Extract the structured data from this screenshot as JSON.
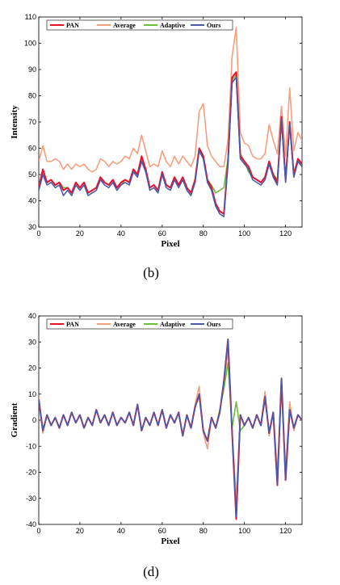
{
  "captions": [
    "(b)",
    "(d)"
  ],
  "chart_data": [
    {
      "type": "line",
      "id": "b",
      "xlabel": "Pixel",
      "ylabel": "Intensity",
      "xlim": [
        0,
        128
      ],
      "ylim": [
        30,
        110
      ],
      "xticks": [
        0,
        20,
        40,
        60,
        80,
        100,
        120
      ],
      "yticks": [
        30,
        40,
        50,
        60,
        70,
        80,
        90,
        100,
        110
      ],
      "legend_position": "top-left",
      "x": [
        0,
        2,
        4,
        6,
        8,
        10,
        12,
        14,
        16,
        18,
        20,
        22,
        24,
        26,
        28,
        30,
        32,
        34,
        36,
        38,
        40,
        42,
        44,
        46,
        48,
        50,
        52,
        54,
        56,
        58,
        60,
        62,
        64,
        66,
        68,
        70,
        72,
        74,
        76,
        78,
        80,
        82,
        84,
        86,
        88,
        90,
        92,
        94,
        96,
        98,
        100,
        102,
        104,
        106,
        108,
        110,
        112,
        114,
        116,
        118,
        120,
        122,
        124,
        126,
        128
      ],
      "series": [
        {
          "name": "PAN",
          "color": "#e8112d",
          "values": [
            45,
            52,
            47,
            48,
            46,
            47,
            44,
            45,
            43,
            47,
            45,
            47,
            43,
            44,
            45,
            49,
            47,
            46,
            48,
            45,
            47,
            48,
            47,
            52,
            50,
            57,
            52,
            45,
            46,
            44,
            51,
            46,
            45,
            49,
            46,
            49,
            45,
            43,
            48,
            60,
            57,
            48,
            45,
            39,
            36,
            35,
            55,
            87,
            89,
            57,
            55,
            53,
            49,
            48,
            47,
            49,
            55,
            50,
            47,
            72,
            48,
            70,
            50,
            56,
            54
          ]
        },
        {
          "name": "Average",
          "color": "#f4a07e",
          "values": [
            55,
            61,
            55,
            55,
            56,
            55,
            52,
            54,
            52,
            54,
            53,
            54,
            52,
            51,
            52,
            56,
            55,
            53,
            55,
            54,
            55,
            57,
            56,
            60,
            58,
            65,
            59,
            53,
            54,
            53,
            59,
            55,
            53,
            57,
            54,
            57,
            55,
            53,
            57,
            74,
            77,
            61,
            57,
            55,
            53,
            53,
            63,
            95,
            106,
            66,
            62,
            61,
            57,
            56,
            56,
            58,
            69,
            63,
            58,
            76,
            57,
            83,
            59,
            66,
            63
          ]
        },
        {
          "name": "Adaptive",
          "color": "#6cbf3b",
          "values": [
            46,
            51,
            47,
            48,
            46,
            47,
            45,
            45,
            43,
            47,
            45,
            47,
            43,
            44,
            45,
            48,
            47,
            46,
            48,
            45,
            46,
            48,
            47,
            51,
            50,
            56,
            52,
            45,
            46,
            44,
            50,
            46,
            45,
            49,
            46,
            49,
            45,
            43,
            48,
            60,
            56,
            48,
            46,
            43,
            44,
            45,
            56,
            86,
            88,
            58,
            55,
            51,
            49,
            48,
            47,
            49,
            55,
            50,
            48,
            71,
            48,
            69,
            50,
            55,
            54
          ]
        },
        {
          "name": "Ours",
          "color": "#4a5aa8",
          "values": [
            44,
            50,
            46,
            47,
            45,
            46,
            42,
            44,
            42,
            46,
            44,
            46,
            42,
            43,
            44,
            48,
            46,
            45,
            47,
            44,
            46,
            47,
            46,
            51,
            49,
            55,
            51,
            44,
            45,
            43,
            50,
            45,
            44,
            48,
            45,
            48,
            44,
            42,
            47,
            59,
            56,
            47,
            44,
            38,
            35,
            34,
            54,
            85,
            87,
            56,
            54,
            52,
            48,
            47,
            46,
            48,
            54,
            49,
            46,
            71,
            47,
            69,
            49,
            55,
            53
          ]
        }
      ]
    },
    {
      "type": "line",
      "id": "d",
      "xlabel": "Pixel",
      "ylabel": "Gradient",
      "xlim": [
        0,
        128
      ],
      "ylim": [
        -40,
        40
      ],
      "xticks": [
        0,
        20,
        40,
        60,
        80,
        100,
        120
      ],
      "yticks": [
        -40,
        -30,
        -20,
        -10,
        0,
        10,
        20,
        30,
        40
      ],
      "legend_position": "top",
      "x": [
        0,
        2,
        4,
        6,
        8,
        10,
        12,
        14,
        16,
        18,
        20,
        22,
        24,
        26,
        28,
        30,
        32,
        34,
        36,
        38,
        40,
        42,
        44,
        46,
        48,
        50,
        52,
        54,
        56,
        58,
        60,
        62,
        64,
        66,
        68,
        70,
        72,
        74,
        76,
        78,
        80,
        82,
        84,
        86,
        88,
        90,
        92,
        94,
        96,
        98,
        100,
        102,
        104,
        106,
        108,
        110,
        112,
        114,
        116,
        118,
        120,
        122,
        124,
        126,
        128
      ],
      "series": [
        {
          "name": "PAN",
          "color": "#e8112d",
          "values": [
            8,
            -4,
            2,
            -2,
            1,
            -3,
            2,
            -2,
            3,
            -1,
            2,
            -3,
            1,
            -2,
            4,
            -1,
            2,
            -2,
            3,
            -2,
            1,
            -1,
            3,
            -2,
            6,
            -4,
            1,
            -2,
            3,
            -2,
            4,
            -3,
            2,
            -1,
            3,
            -6,
            2,
            -3,
            5,
            10,
            -4,
            -8,
            1,
            -3,
            3,
            15,
            31,
            -5,
            -38,
            2,
            -2,
            1,
            -3,
            2,
            -2,
            9,
            -5,
            3,
            -25,
            16,
            -23,
            4,
            -3,
            2,
            0
          ]
        },
        {
          "name": "Average",
          "color": "#f4a07e",
          "values": [
            9,
            -5,
            2,
            -2,
            1,
            -3,
            2,
            -2,
            3,
            -1,
            2,
            -3,
            1,
            -2,
            4,
            -1,
            2,
            -2,
            3,
            -2,
            1,
            -1,
            3,
            -2,
            6,
            -4,
            1,
            -2,
            3,
            -2,
            4,
            -3,
            2,
            -1,
            3,
            -6,
            2,
            -3,
            6,
            13,
            -5,
            -11,
            1,
            -3,
            3,
            14,
            27,
            -4,
            -30,
            2,
            -2,
            1,
            -3,
            2,
            -2,
            11,
            -6,
            3,
            -20,
            13,
            -19,
            7,
            -4,
            2,
            0
          ]
        },
        {
          "name": "Adaptive",
          "color": "#6cbf3b",
          "values": [
            7,
            -4,
            2,
            -2,
            1,
            -3,
            2,
            -2,
            3,
            -1,
            2,
            -3,
            1,
            -2,
            4,
            -1,
            2,
            -2,
            3,
            -2,
            1,
            -1,
            3,
            -2,
            6,
            -4,
            1,
            -2,
            3,
            -2,
            4,
            -3,
            2,
            -1,
            3,
            -6,
            2,
            -3,
            5,
            9,
            -4,
            -8,
            1,
            -3,
            4,
            12,
            22,
            -3,
            7,
            -4,
            -2,
            1,
            -3,
            2,
            -2,
            8,
            -5,
            3,
            -24,
            15,
            -22,
            4,
            -3,
            2,
            0
          ]
        },
        {
          "name": "Ours",
          "color": "#4a5aa8",
          "values": [
            8,
            -4,
            2,
            -2,
            1,
            -3,
            2,
            -2,
            3,
            -1,
            2,
            -3,
            1,
            -2,
            4,
            -1,
            2,
            -2,
            3,
            -2,
            1,
            -1,
            3,
            -2,
            6,
            -4,
            1,
            -2,
            3,
            -2,
            4,
            -3,
            2,
            -1,
            3,
            -6,
            2,
            -3,
            5,
            10,
            -4,
            -8,
            1,
            -3,
            3,
            15,
            31,
            -5,
            -37,
            2,
            -2,
            1,
            -3,
            2,
            -2,
            9,
            -5,
            3,
            -25,
            16,
            -23,
            4,
            -3,
            2,
            0
          ]
        }
      ]
    }
  ]
}
